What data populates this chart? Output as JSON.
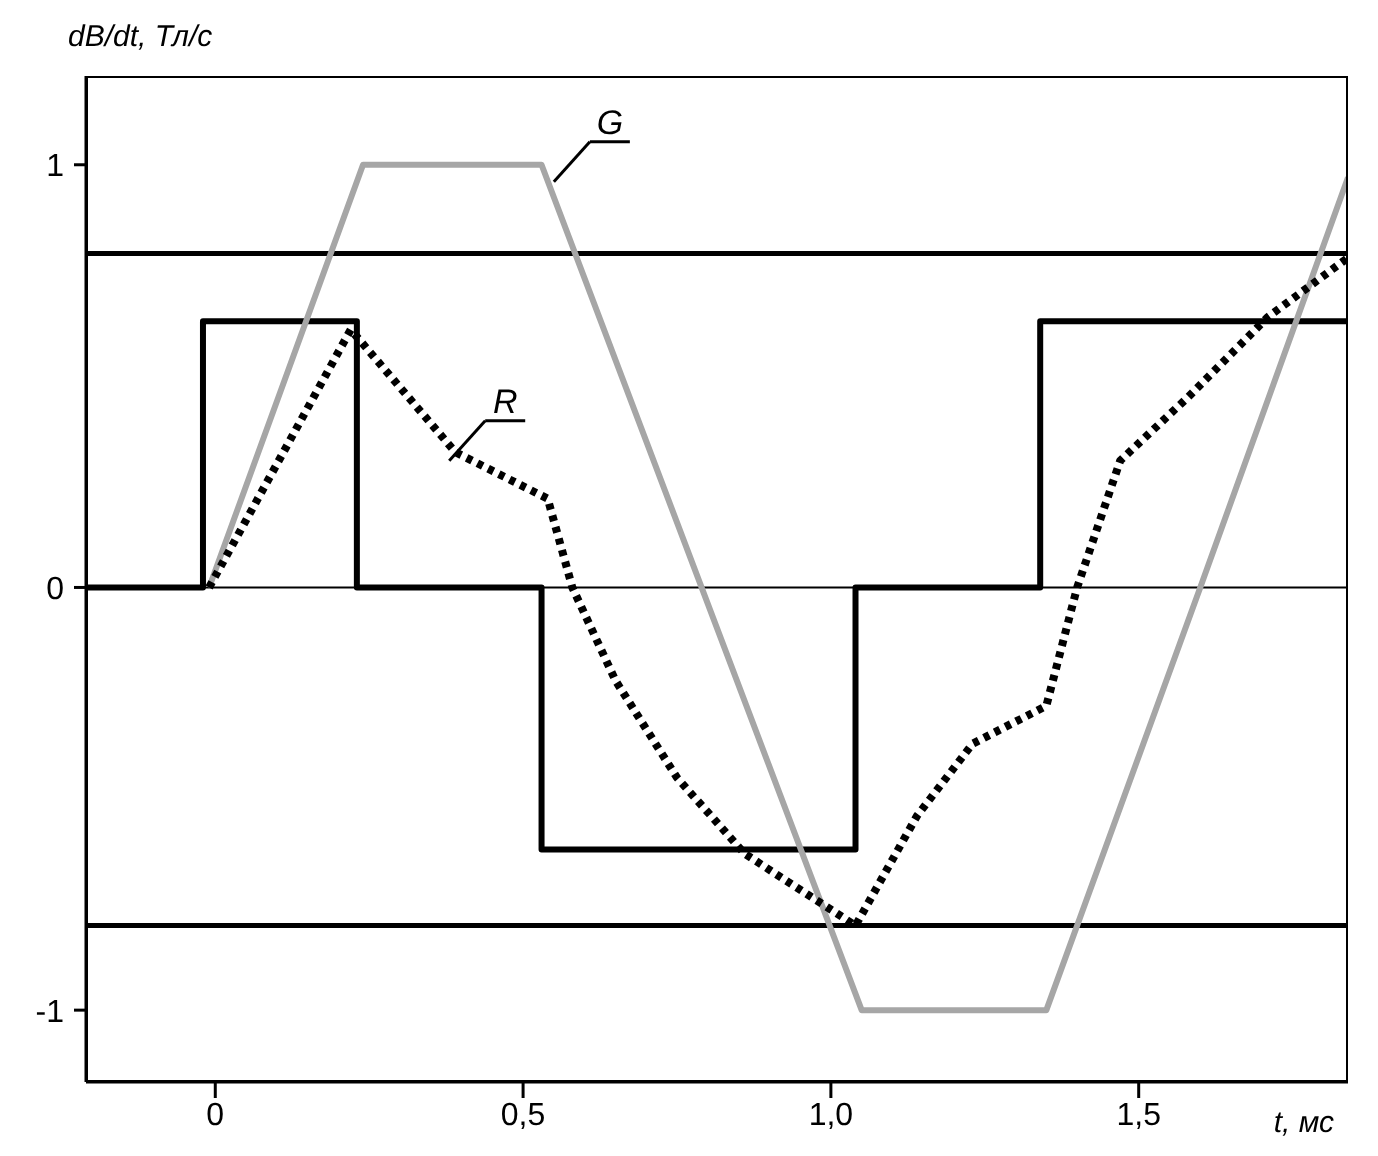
{
  "chart_data": {
    "type": "line",
    "xlabel": "t, мс",
    "ylabel": "dB/dt, Тл/с",
    "xlim": [
      -0.21,
      1.84
    ],
    "ylim": [
      -1.17,
      1.21
    ],
    "xticks": [
      {
        "value": 0,
        "label": "0"
      },
      {
        "value": 0.5,
        "label": "0,5"
      },
      {
        "value": 1,
        "label": "1,0"
      },
      {
        "value": 1.5,
        "label": "1,5"
      }
    ],
    "yticks": [
      -1,
      0,
      1
    ],
    "marker": "none",
    "series": [
      {
        "type": "step",
        "color": "#000000",
        "line_style": "solid",
        "x": [
          -0.21,
          -0.02,
          0.23,
          0.53,
          1.04,
          1.34,
          1.84
        ],
        "values": [
          0,
          0.63,
          0,
          -0.62,
          0,
          0.63,
          0.63
        ]
      },
      {
        "type": "line",
        "color": "#a6a6a6",
        "line_style": "solid",
        "x": [
          -0.01,
          0.24,
          0.53,
          1.05,
          1.35,
          1.6,
          1.84
        ],
        "values": [
          0,
          1,
          1,
          -1,
          -1,
          0,
          0.97
        ]
      },
      {
        "type": "line",
        "color": "#000000",
        "line_style": "dotted",
        "x": [
          -0.01,
          0.22,
          0.39,
          0.54,
          0.58,
          0.65,
          0.75,
          0.86,
          1.04,
          1.14,
          1.23,
          1.35,
          1.4,
          1.47,
          1.58,
          1.71,
          1.84
        ],
        "values": [
          0,
          0.61,
          0.32,
          0.21,
          0,
          -0.22,
          -0.45,
          -0.63,
          -0.8,
          -0.54,
          -0.37,
          -0.28,
          0,
          0.3,
          0.45,
          0.64,
          0.78
        ]
      }
    ],
    "ref_lines": [
      {
        "axis": "y",
        "value": 0,
        "color": "#000000"
      },
      {
        "axis": "y",
        "value": 0.79,
        "color": "#000000"
      },
      {
        "axis": "y",
        "value": -0.8,
        "color": "#000000"
      }
    ],
    "annotations": [
      {
        "text": "G",
        "x": 0.55,
        "y": 0.96
      },
      {
        "text": "R",
        "x": 0.38,
        "y": 0.3
      }
    ]
  }
}
